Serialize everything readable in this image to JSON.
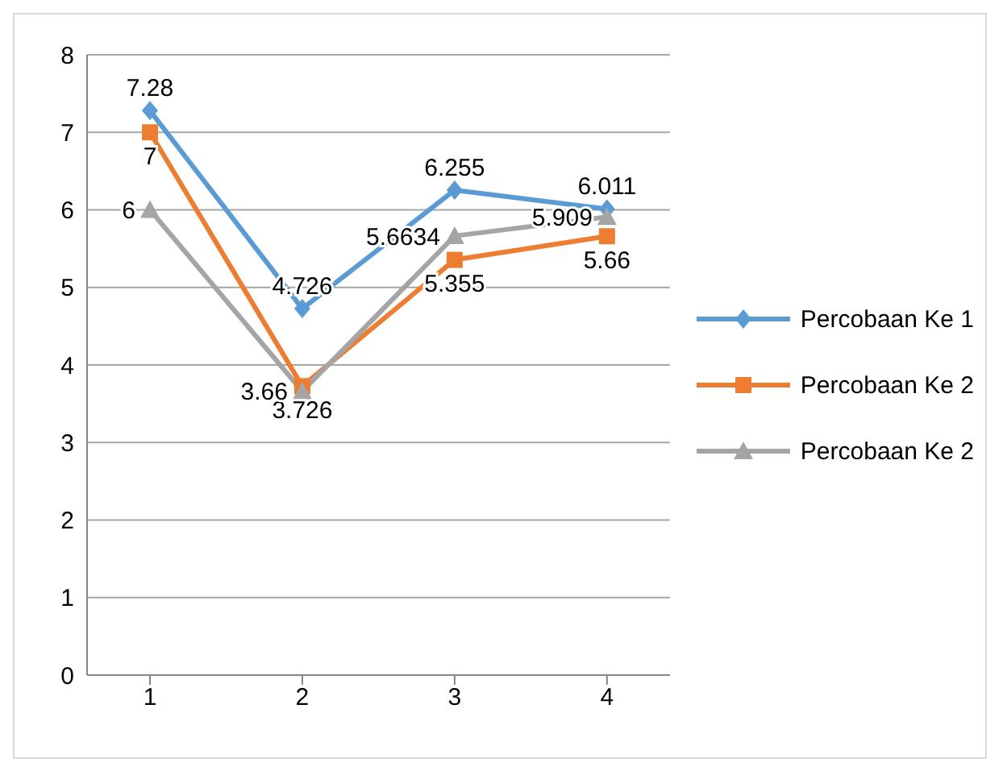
{
  "chart_data": {
    "type": "line",
    "categories": [
      "1",
      "2",
      "3",
      "4"
    ],
    "series": [
      {
        "name": "Percobaan Ke 1",
        "color": "#5b9bd5",
        "marker": "diamond",
        "values": [
          7.28,
          4.726,
          6.255,
          6.011
        ]
      },
      {
        "name": "Percobaan Ke 2",
        "color": "#ed7d31",
        "marker": "square",
        "values": [
          7,
          3.726,
          5.355,
          5.66
        ]
      },
      {
        "name": "Percobaan Ke 2",
        "color": "#a5a5a5",
        "marker": "triangle",
        "values": [
          6,
          3.66,
          5.6634,
          5.909
        ]
      }
    ],
    "ylim": [
      0,
      8
    ],
    "yticks": [
      0,
      1,
      2,
      3,
      4,
      5,
      6,
      7,
      8
    ],
    "grid": "y",
    "legend": "right",
    "data_labels": true
  }
}
